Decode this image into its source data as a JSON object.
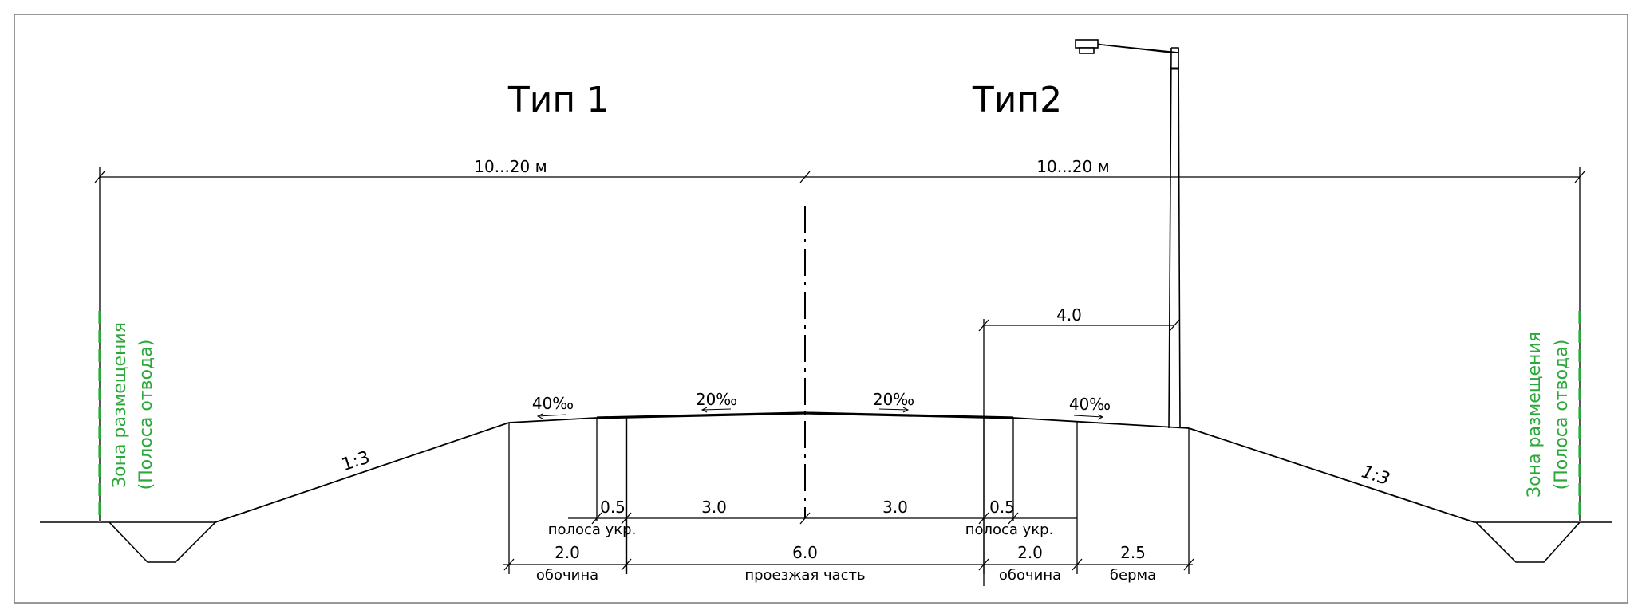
{
  "titles": {
    "type1": "Тип 1",
    "type2": "Тип2"
  },
  "dimensions": {
    "left_width": "10...20  м",
    "right_width": "10...20  м",
    "light_offset": "4.0",
    "strip_left": "0.5",
    "lane_left": "3.0",
    "lane_right": "3.0",
    "strip_right": "0.5",
    "shoulder_left": "2.0",
    "carriageway": "6.0",
    "shoulder_right": "2.0",
    "berm": "2.5"
  },
  "labels": {
    "strip_left": "полоса  укр.",
    "strip_right": "полоса  укр.",
    "shoulder_left": "обочина",
    "carriageway": "проезжая  часть",
    "shoulder_right": "обочина",
    "berm": "берма"
  },
  "slopes": {
    "shoulder_left": "40‰",
    "lane_left": "20‰",
    "lane_right": "20‰",
    "shoulder_right": "40‰",
    "embankment_left": "1:3",
    "embankment_right": "1:3"
  },
  "zone": {
    "left_line1": "Зона размещения",
    "left_line2": "(Полоса отвода)",
    "right_line1": "Зона размещения",
    "right_line2": "(Полоса отвода)"
  },
  "colors": {
    "lines": "#000000",
    "zone_boundary": "#2aa83a",
    "frame": "#777777"
  },
  "icons": {
    "street_light": "street-light-icon"
  }
}
